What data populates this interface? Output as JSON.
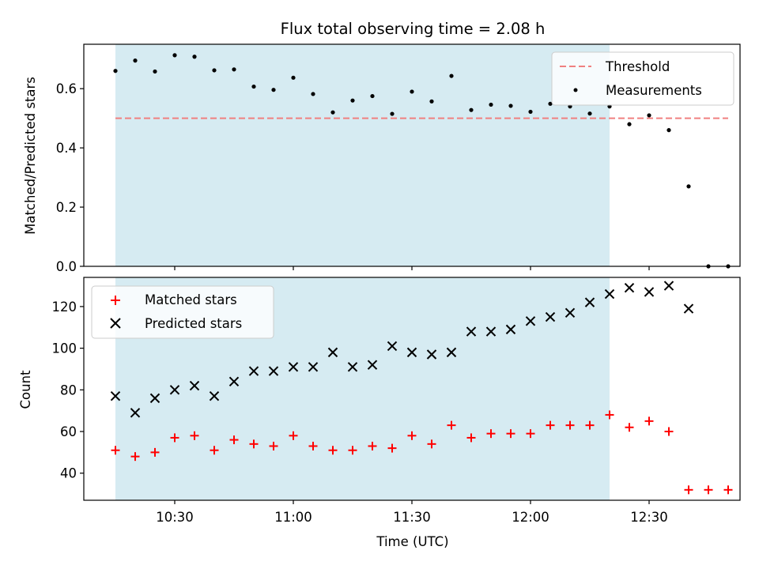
{
  "figure_title": "Flux total observing time = 2.08 h",
  "x_axis": {
    "label": "Time (UTC)",
    "ticks": [
      {
        "label": "10:30",
        "value": "10:30"
      },
      {
        "label": "11:00",
        "value": "11:00"
      },
      {
        "label": "11:30",
        "value": "11:30"
      },
      {
        "label": "12:00",
        "value": "12:00"
      },
      {
        "label": "12:30",
        "value": "12:30"
      }
    ],
    "range": [
      "10:07",
      "12:53"
    ]
  },
  "colors": {
    "shade": "#add8e6",
    "threshold": "#f08080",
    "measurements": "#000000",
    "matched": "#ff0000",
    "predicted": "#000000"
  },
  "chart_data": [
    {
      "type": "scatter",
      "ylabel": "Matched/Predicted stars",
      "ylim": [
        0,
        0.75
      ],
      "yticks": [
        "0.0",
        "0.2",
        "0.4",
        "0.6"
      ],
      "ytick_values": [
        0,
        0.2,
        0.4,
        0.6
      ],
      "grid": false,
      "legend_position": "upper right",
      "shaded_span": {
        "from": "10:15",
        "to": "12:20"
      },
      "threshold": {
        "name": "Threshold",
        "value": 0.5,
        "from": "10:15",
        "to": "12:50"
      },
      "series": [
        {
          "name": "Measurements",
          "marker": "dot",
          "x": [
            "10:15",
            "10:20",
            "10:25",
            "10:30",
            "10:35",
            "10:40",
            "10:45",
            "10:50",
            "10:55",
            "11:00",
            "11:05",
            "11:10",
            "11:15",
            "11:20",
            "11:25",
            "11:30",
            "11:35",
            "11:40",
            "11:45",
            "11:50",
            "11:55",
            "12:00",
            "12:05",
            "12:10",
            "12:15",
            "12:20",
            "12:25",
            "12:30",
            "12:35",
            "12:40",
            "12:45",
            "12:50"
          ],
          "y": [
            0.66,
            0.695,
            0.658,
            0.713,
            0.708,
            0.662,
            0.665,
            0.607,
            0.596,
            0.637,
            0.582,
            0.52,
            0.56,
            0.575,
            0.515,
            0.59,
            0.557,
            0.643,
            0.528,
            0.546,
            0.542,
            0.522,
            0.549,
            0.54,
            0.516,
            0.54,
            0.48,
            0.51,
            0.46,
            0.27,
            0,
            0
          ]
        }
      ]
    },
    {
      "type": "scatter",
      "ylabel": "Count",
      "xlabel": "Time (UTC)",
      "ylim": [
        27,
        134
      ],
      "yticks": [
        "40",
        "60",
        "80",
        "100",
        "120"
      ],
      "ytick_values": [
        40,
        60,
        80,
        100,
        120
      ],
      "grid": false,
      "legend_position": "upper left",
      "shaded_span": {
        "from": "10:15",
        "to": "12:20"
      },
      "series": [
        {
          "name": "Matched stars",
          "marker": "plus",
          "x": [
            "10:15",
            "10:20",
            "10:25",
            "10:30",
            "10:35",
            "10:40",
            "10:45",
            "10:50",
            "10:55",
            "11:00",
            "11:05",
            "11:10",
            "11:15",
            "11:20",
            "11:25",
            "11:30",
            "11:35",
            "11:40",
            "11:45",
            "11:50",
            "11:55",
            "12:00",
            "12:05",
            "12:10",
            "12:15",
            "12:20",
            "12:25",
            "12:30",
            "12:35",
            "12:40",
            "12:45",
            "12:50"
          ],
          "y": [
            51,
            48,
            50,
            57,
            58,
            51,
            56,
            54,
            53,
            58,
            53,
            51,
            51,
            53,
            52,
            58,
            54,
            63,
            57,
            59,
            59,
            59,
            63,
            63,
            63,
            68,
            62,
            65,
            60,
            32,
            32,
            32
          ]
        },
        {
          "name": "Predicted stars",
          "marker": "x",
          "x": [
            "10:15",
            "10:20",
            "10:25",
            "10:30",
            "10:35",
            "10:40",
            "10:45",
            "10:50",
            "10:55",
            "11:00",
            "11:05",
            "11:10",
            "11:15",
            "11:20",
            "11:25",
            "11:30",
            "11:35",
            "11:40",
            "11:45",
            "11:50",
            "11:55",
            "12:00",
            "12:05",
            "12:10",
            "12:15",
            "12:20",
            "12:25",
            "12:30",
            "12:35",
            "12:40"
          ],
          "y": [
            77,
            69,
            76,
            80,
            82,
            77,
            84,
            89,
            89,
            91,
            91,
            98,
            91,
            92,
            101,
            98,
            97,
            98,
            108,
            108,
            109,
            113,
            115,
            117,
            122,
            126,
            129,
            127,
            130,
            119
          ]
        }
      ]
    }
  ]
}
